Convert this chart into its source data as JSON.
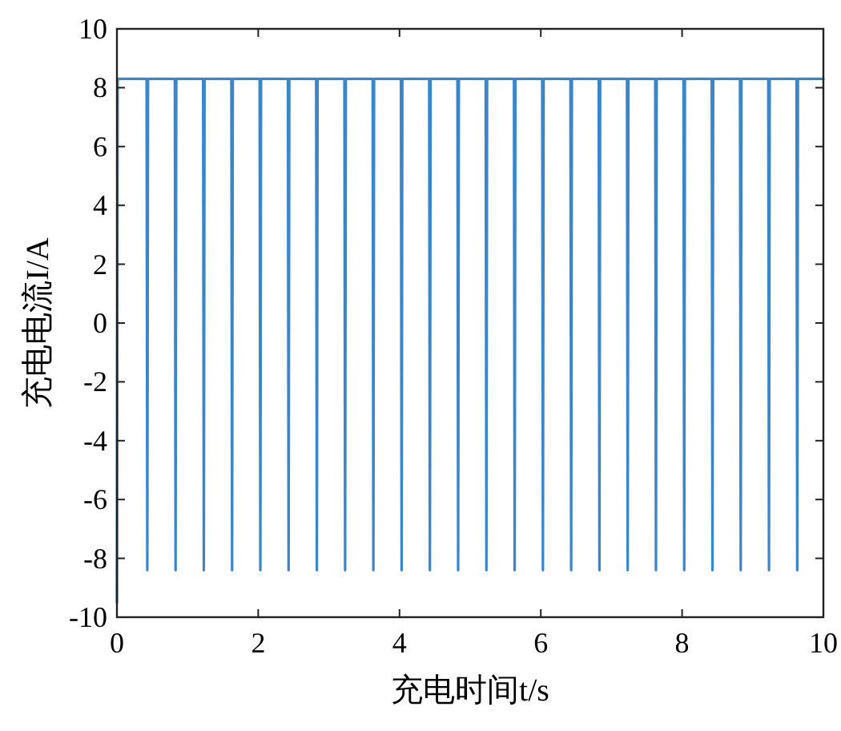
{
  "chart_data": {
    "type": "line",
    "xlabel": "充电时间t/s",
    "ylabel": "充电电流I/A",
    "x": [
      0,
      0.01,
      0.42,
      0.43,
      0.44,
      0.82,
      0.83,
      0.84,
      1.22,
      1.23,
      1.24,
      1.62,
      1.63,
      1.64,
      2.02,
      2.03,
      2.04,
      2.42,
      2.43,
      2.44,
      2.82,
      2.83,
      2.84,
      3.22,
      3.23,
      3.24,
      3.62,
      3.63,
      3.64,
      4.02,
      4.03,
      4.04,
      4.42,
      4.43,
      4.44,
      4.82,
      4.83,
      4.84,
      5.22,
      5.23,
      5.24,
      5.62,
      5.63,
      5.64,
      6.02,
      6.03,
      6.04,
      6.42,
      6.43,
      6.44,
      6.82,
      6.83,
      6.84,
      7.22,
      7.23,
      7.24,
      7.62,
      7.63,
      7.64,
      8.02,
      8.03,
      8.04,
      8.42,
      8.43,
      8.44,
      8.82,
      8.83,
      8.84,
      9.22,
      9.23,
      9.24,
      9.62,
      9.63,
      9.64,
      10
    ],
    "series": [
      {
        "color": "#3a86c8",
        "values": [
          -9.5,
          8.3,
          8.3,
          -8.4,
          8.3,
          8.3,
          -8.4,
          8.3,
          8.3,
          -8.4,
          8.3,
          8.3,
          -8.4,
          8.3,
          8.3,
          -8.4,
          8.3,
          8.3,
          -8.4,
          8.3,
          8.3,
          -8.4,
          8.3,
          8.3,
          -8.4,
          8.3,
          8.3,
          -8.4,
          8.3,
          8.3,
          -8.4,
          8.3,
          8.3,
          -8.4,
          8.3,
          8.3,
          -8.4,
          8.3,
          8.3,
          -8.4,
          8.3,
          8.3,
          -8.4,
          8.3,
          8.3,
          -8.4,
          8.3,
          8.3,
          -8.4,
          8.3,
          8.3,
          -8.4,
          8.3,
          8.3,
          -8.4,
          8.3,
          8.3,
          -8.4,
          8.3,
          8.3,
          -8.4,
          8.3,
          8.3,
          -8.4,
          8.3,
          8.3,
          -8.4,
          8.3,
          8.3,
          -8.4,
          8.3,
          8.3,
          -8.4,
          8.3,
          8.3
        ]
      }
    ],
    "xlim": [
      0,
      10
    ],
    "ylim": [
      -10,
      10
    ],
    "xticks": [
      0,
      2,
      4,
      6,
      8,
      10
    ],
    "yticks": [
      -10,
      -8,
      -6,
      -4,
      -2,
      0,
      2,
      4,
      6,
      8,
      10
    ]
  }
}
